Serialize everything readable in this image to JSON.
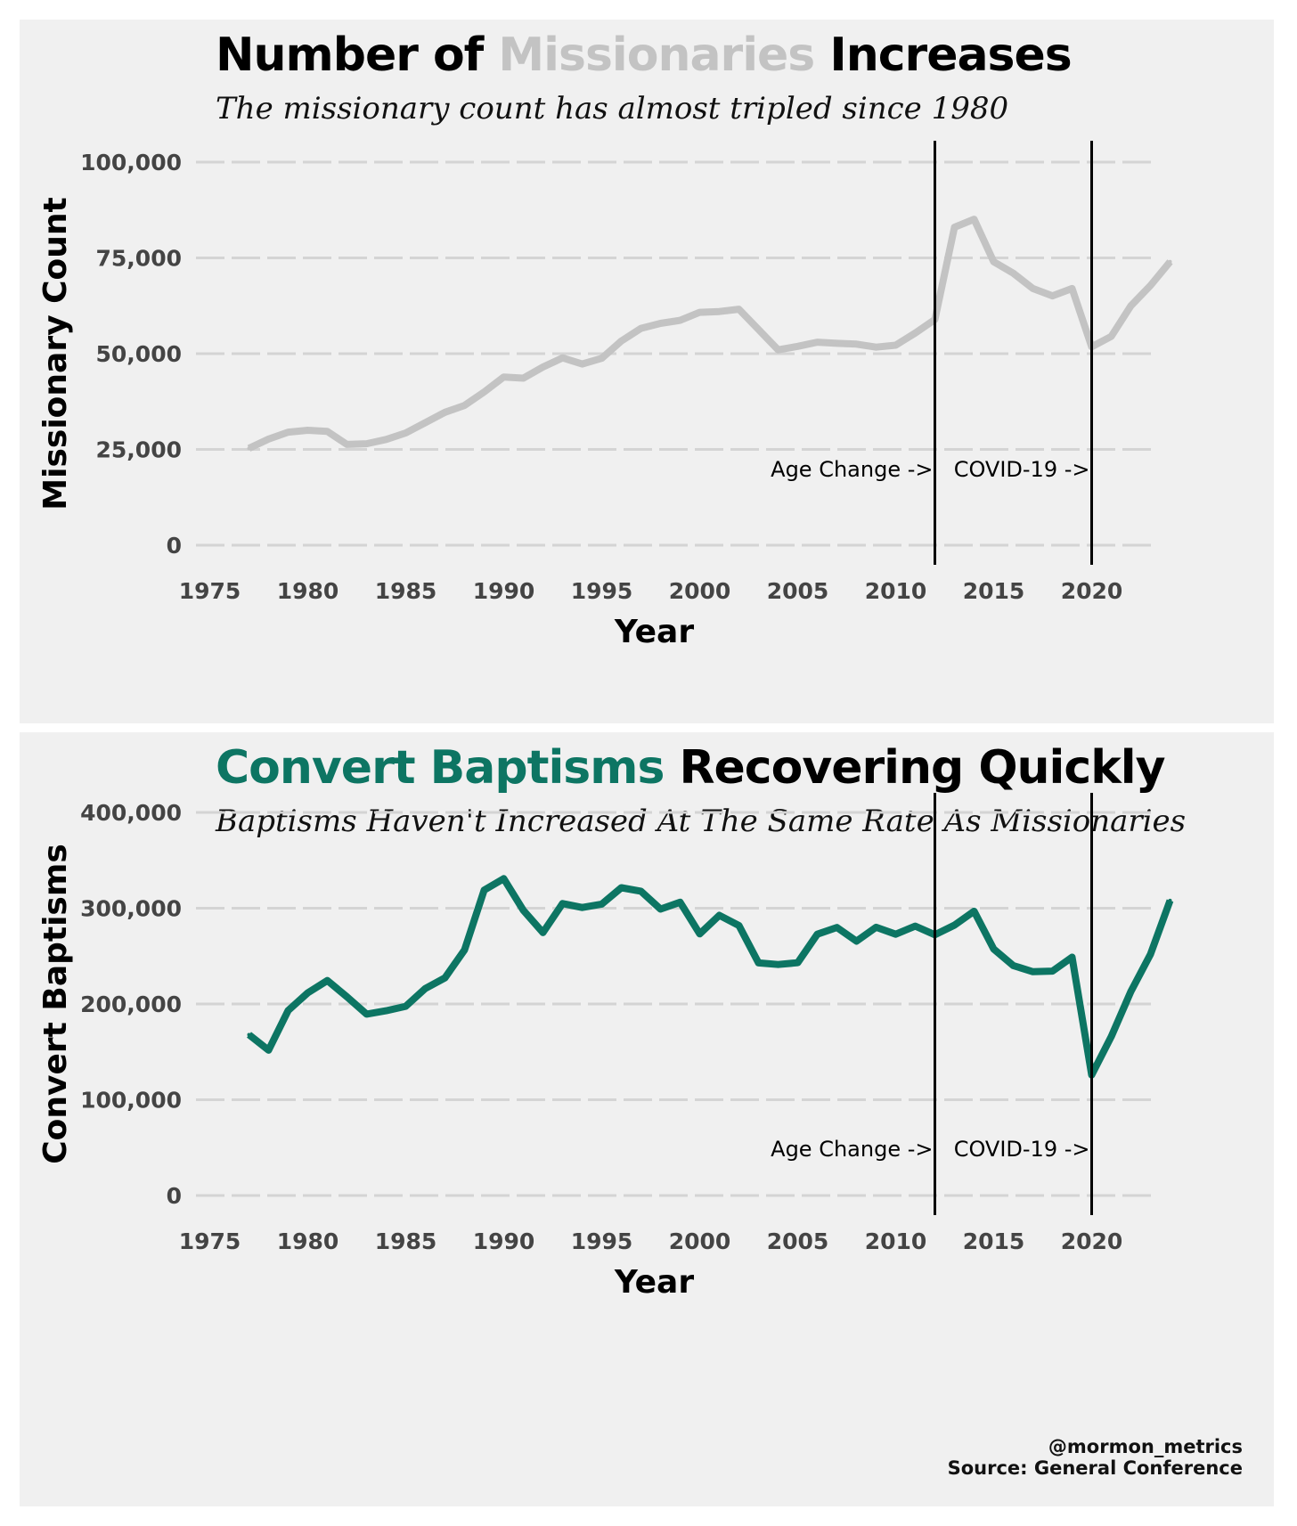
{
  "colors": {
    "background": "#f0f0f0",
    "grid": "#d4d4d4",
    "missionary_line": "#c3c3c3",
    "baptism_line": "#0d7563",
    "tick_text": "#444444"
  },
  "top": {
    "title_prefix": "Number of ",
    "title_highlight": "Missionaries",
    "title_suffix": " Increases",
    "subtitle": "The missionary count has almost tripled since 1980"
  },
  "bottom": {
    "title_highlight": "Convert Baptisms",
    "title_suffix": " Recovering Quickly",
    "subtitle": "Baptisms Haven't Increased At The Same Rate As Missionaries"
  },
  "caption": {
    "handle": "@mormon_metrics",
    "source": "Source: General Conference"
  },
  "chart_data": [
    {
      "type": "line",
      "title": "Number of Missionaries Increases",
      "subtitle": "The missionary count has almost tripled since 1980",
      "xlabel": "Year",
      "ylabel": "Missionary Count",
      "xlim": [
        1975,
        2025
      ],
      "ylim": [
        0,
        100000
      ],
      "xticks": [
        1975,
        1980,
        1985,
        1990,
        1995,
        2000,
        2005,
        2010,
        2015,
        2020
      ],
      "yticks": [
        0,
        25000,
        50000,
        75000,
        100000
      ],
      "ytick_labels": [
        "0",
        "25,000",
        "50,000",
        "75,000",
        "100,000"
      ],
      "grid": true,
      "series": [
        {
          "name": "Missionary Count",
          "x": [
            1977,
            1978,
            1979,
            1980,
            1981,
            1982,
            1983,
            1984,
            1985,
            1986,
            1987,
            1988,
            1989,
            1990,
            1991,
            1992,
            1993,
            1994,
            1995,
            1996,
            1997,
            1998,
            1999,
            2000,
            2001,
            2002,
            2003,
            2004,
            2005,
            2006,
            2007,
            2008,
            2009,
            2010,
            2011,
            2012,
            2013,
            2014,
            2015,
            2016,
            2017,
            2018,
            2019,
            2020,
            2021,
            2022,
            2023,
            2024
          ],
          "values": [
            25300,
            27700,
            29500,
            30000,
            29700,
            26300,
            26500,
            27600,
            29300,
            32000,
            34700,
            36500,
            40000,
            43900,
            43600,
            46500,
            48900,
            47300,
            48800,
            53300,
            56600,
            57900,
            58700,
            60800,
            61000,
            61600,
            56300,
            51000,
            51900,
            53000,
            52700,
            52500,
            51700,
            52200,
            55400,
            58900,
            83000,
            85100,
            74000,
            71000,
            67000,
            65100,
            67000,
            51800,
            54500,
            62500,
            67800,
            74000
          ]
        }
      ],
      "annotations": [
        {
          "x": 2012,
          "label": "Age Change ->"
        },
        {
          "x": 2020,
          "label": "COVID-19 ->"
        }
      ]
    },
    {
      "type": "line",
      "title": "Convert Baptisms Recovering Quickly",
      "subtitle": "Baptisms Haven't Increased At The Same Rate As Missionaries",
      "xlabel": "Year",
      "ylabel": "Convert Baptisms",
      "xlim": [
        1975,
        2025
      ],
      "ylim": [
        0,
        400000
      ],
      "xticks": [
        1975,
        1980,
        1985,
        1990,
        1995,
        2000,
        2005,
        2010,
        2015,
        2020
      ],
      "yticks": [
        0,
        100000,
        200000,
        300000,
        400000
      ],
      "ytick_labels": [
        "0",
        "100,000",
        "200,000",
        "300,000",
        "400,000"
      ],
      "grid": true,
      "series": [
        {
          "name": "Convert Baptisms",
          "x": [
            1977,
            1978,
            1979,
            1980,
            1981,
            1982,
            1983,
            1984,
            1985,
            1986,
            1987,
            1988,
            1989,
            1990,
            1991,
            1992,
            1993,
            1994,
            1995,
            1996,
            1997,
            1998,
            1999,
            2000,
            2001,
            2002,
            2003,
            2004,
            2005,
            2006,
            2007,
            2008,
            2009,
            2010,
            2011,
            2012,
            2013,
            2014,
            2015,
            2016,
            2017,
            2018,
            2019,
            2020,
            2021,
            2022,
            2023,
            2024
          ],
          "values": [
            167900,
            151700,
            193200,
            211600,
            224500,
            207400,
            189400,
            192900,
            197600,
            216200,
            227300,
            256500,
            318900,
            330900,
            297800,
            274500,
            304800,
            300700,
            304300,
            321400,
            317800,
            299100,
            306200,
            273200,
            292600,
            282000,
            242900,
            241200,
            243100,
            272800,
            279900,
            265600,
            280100,
            272800,
            281300,
            272300,
            282300,
            296800,
            257400,
            240100,
            233700,
            234300,
            248800,
            125900,
            166000,
            213000,
            251800,
            308000
          ]
        }
      ],
      "annotations": [
        {
          "x": 2012,
          "label": "Age Change ->"
        },
        {
          "x": 2020,
          "label": "COVID-19 ->"
        }
      ]
    }
  ]
}
